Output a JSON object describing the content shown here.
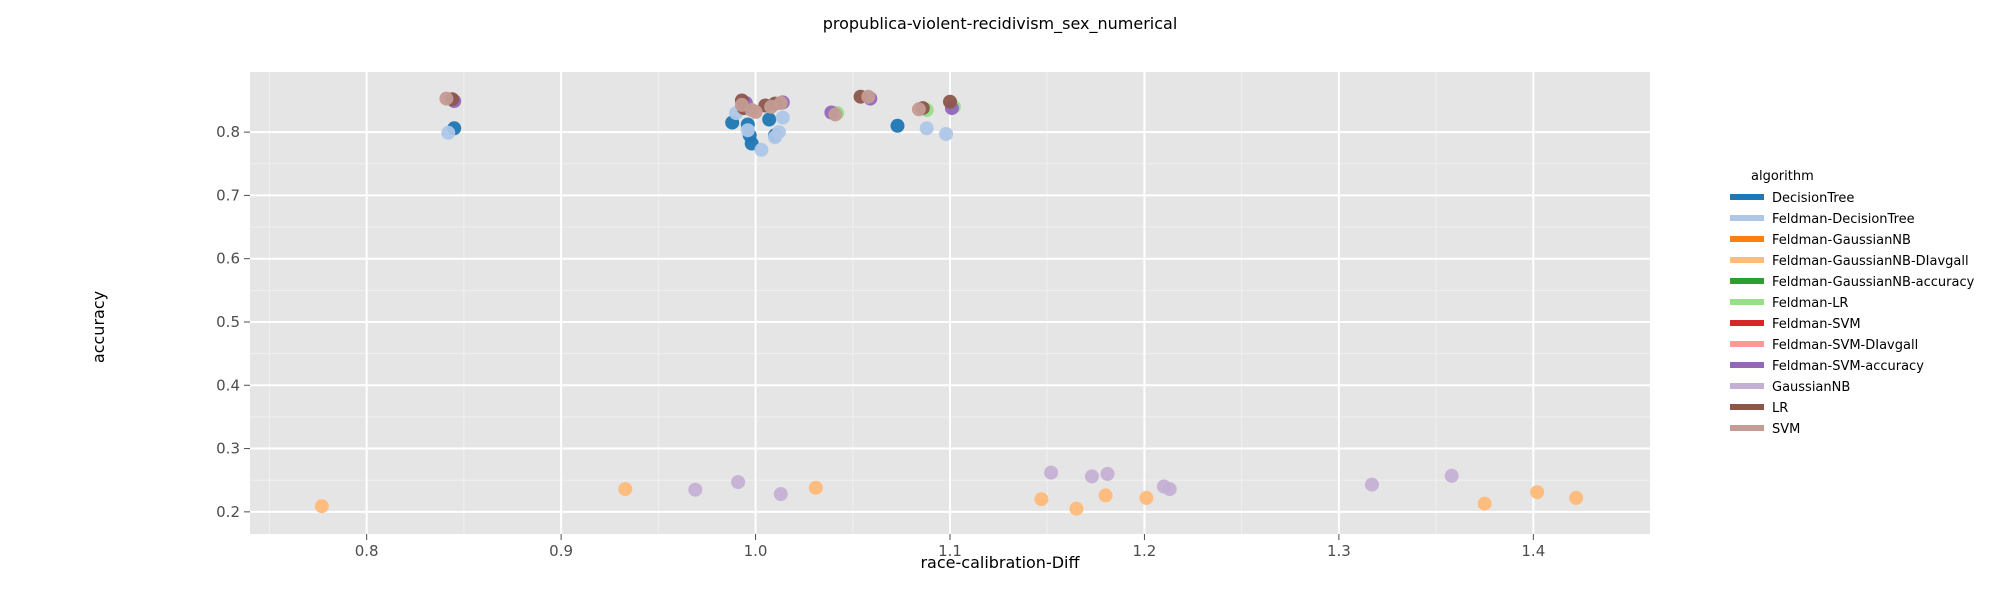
{
  "chart_data": {
    "type": "scatter",
    "title": "propublica-violent-recidivism_sex_numerical",
    "xlabel": "race-calibration-Diff",
    "ylabel": "accuracy",
    "xlim": [
      0.74,
      1.46
    ],
    "ylim": [
      0.165,
      0.895
    ],
    "x_ticks": [
      "0.8",
      "0.9",
      "1.0",
      "1.1",
      "1.2",
      "1.3",
      "1.4"
    ],
    "y_ticks": [
      "0.2",
      "0.3",
      "0.4",
      "0.5",
      "0.6",
      "0.7",
      "0.8"
    ],
    "grid": true,
    "legend_title": "algorithm",
    "legend_position": "right",
    "series": [
      {
        "name": "DecisionTree",
        "color": "#1f77b4",
        "points": [
          [
            0.845,
            0.806
          ],
          [
            0.988,
            0.815
          ],
          [
            0.996,
            0.812
          ],
          [
            0.997,
            0.795
          ],
          [
            0.998,
            0.782
          ],
          [
            1.007,
            0.82
          ],
          [
            1.01,
            0.795
          ],
          [
            1.073,
            0.81
          ]
        ]
      },
      {
        "name": "Feldman-DecisionTree",
        "color": "#aec7e8",
        "points": [
          [
            0.842,
            0.799
          ],
          [
            0.99,
            0.83
          ],
          [
            0.996,
            0.803
          ],
          [
            1.003,
            0.772
          ],
          [
            1.01,
            0.792
          ],
          [
            1.012,
            0.8
          ],
          [
            1.014,
            0.823
          ],
          [
            1.088,
            0.806
          ],
          [
            1.098,
            0.797
          ]
        ]
      },
      {
        "name": "Feldman-GaussianNB",
        "color": "#ff7f0e",
        "points": []
      },
      {
        "name": "Feldman-GaussianNB-DIavgall",
        "color": "#ffbb78",
        "points": [
          [
            0.777,
            0.209
          ],
          [
            0.933,
            0.236
          ],
          [
            1.031,
            0.238
          ],
          [
            1.147,
            0.22
          ],
          [
            1.165,
            0.205
          ],
          [
            1.18,
            0.226
          ],
          [
            1.201,
            0.222
          ],
          [
            1.375,
            0.213
          ],
          [
            1.402,
            0.231
          ],
          [
            1.422,
            0.222
          ]
        ]
      },
      {
        "name": "Feldman-GaussianNB-accuracy",
        "color": "#2ca02c",
        "points": []
      },
      {
        "name": "Feldman-LR",
        "color": "#98df8a",
        "points": [
          [
            1.042,
            0.83
          ],
          [
            1.088,
            0.835
          ],
          [
            1.102,
            0.84
          ]
        ]
      },
      {
        "name": "Feldman-SVM",
        "color": "#d62728",
        "points": []
      },
      {
        "name": "Feldman-SVM-DIavgall",
        "color": "#ff9896",
        "points": []
      },
      {
        "name": "Feldman-SVM-accuracy",
        "color": "#9467bd",
        "points": [
          [
            0.845,
            0.849
          ],
          [
            0.995,
            0.846
          ],
          [
            1.014,
            0.847
          ],
          [
            1.039,
            0.831
          ],
          [
            1.059,
            0.853
          ],
          [
            1.101,
            0.838
          ]
        ]
      },
      {
        "name": "GaussianNB",
        "color": "#c5b0d5",
        "points": [
          [
            0.969,
            0.235
          ],
          [
            0.991,
            0.247
          ],
          [
            1.013,
            0.228
          ],
          [
            1.152,
            0.262
          ],
          [
            1.173,
            0.256
          ],
          [
            1.181,
            0.26
          ],
          [
            1.21,
            0.24
          ],
          [
            1.213,
            0.236
          ],
          [
            1.317,
            0.243
          ],
          [
            1.358,
            0.257
          ]
        ]
      },
      {
        "name": "LR",
        "color": "#8c564b",
        "points": [
          [
            0.844,
            0.852
          ],
          [
            0.993,
            0.85
          ],
          [
            0.994,
            0.838
          ],
          [
            1.005,
            0.842
          ],
          [
            1.01,
            0.845
          ],
          [
            1.054,
            0.856
          ],
          [
            1.086,
            0.838
          ],
          [
            1.1,
            0.848
          ]
        ]
      },
      {
        "name": "SVM",
        "color": "#c49c94",
        "points": [
          [
            0.841,
            0.853
          ],
          [
            0.993,
            0.843
          ],
          [
            0.998,
            0.835
          ],
          [
            1.0,
            0.832
          ],
          [
            1.008,
            0.84
          ],
          [
            1.013,
            0.846
          ],
          [
            1.041,
            0.828
          ],
          [
            1.058,
            0.856
          ],
          [
            1.084,
            0.836
          ]
        ]
      }
    ]
  }
}
